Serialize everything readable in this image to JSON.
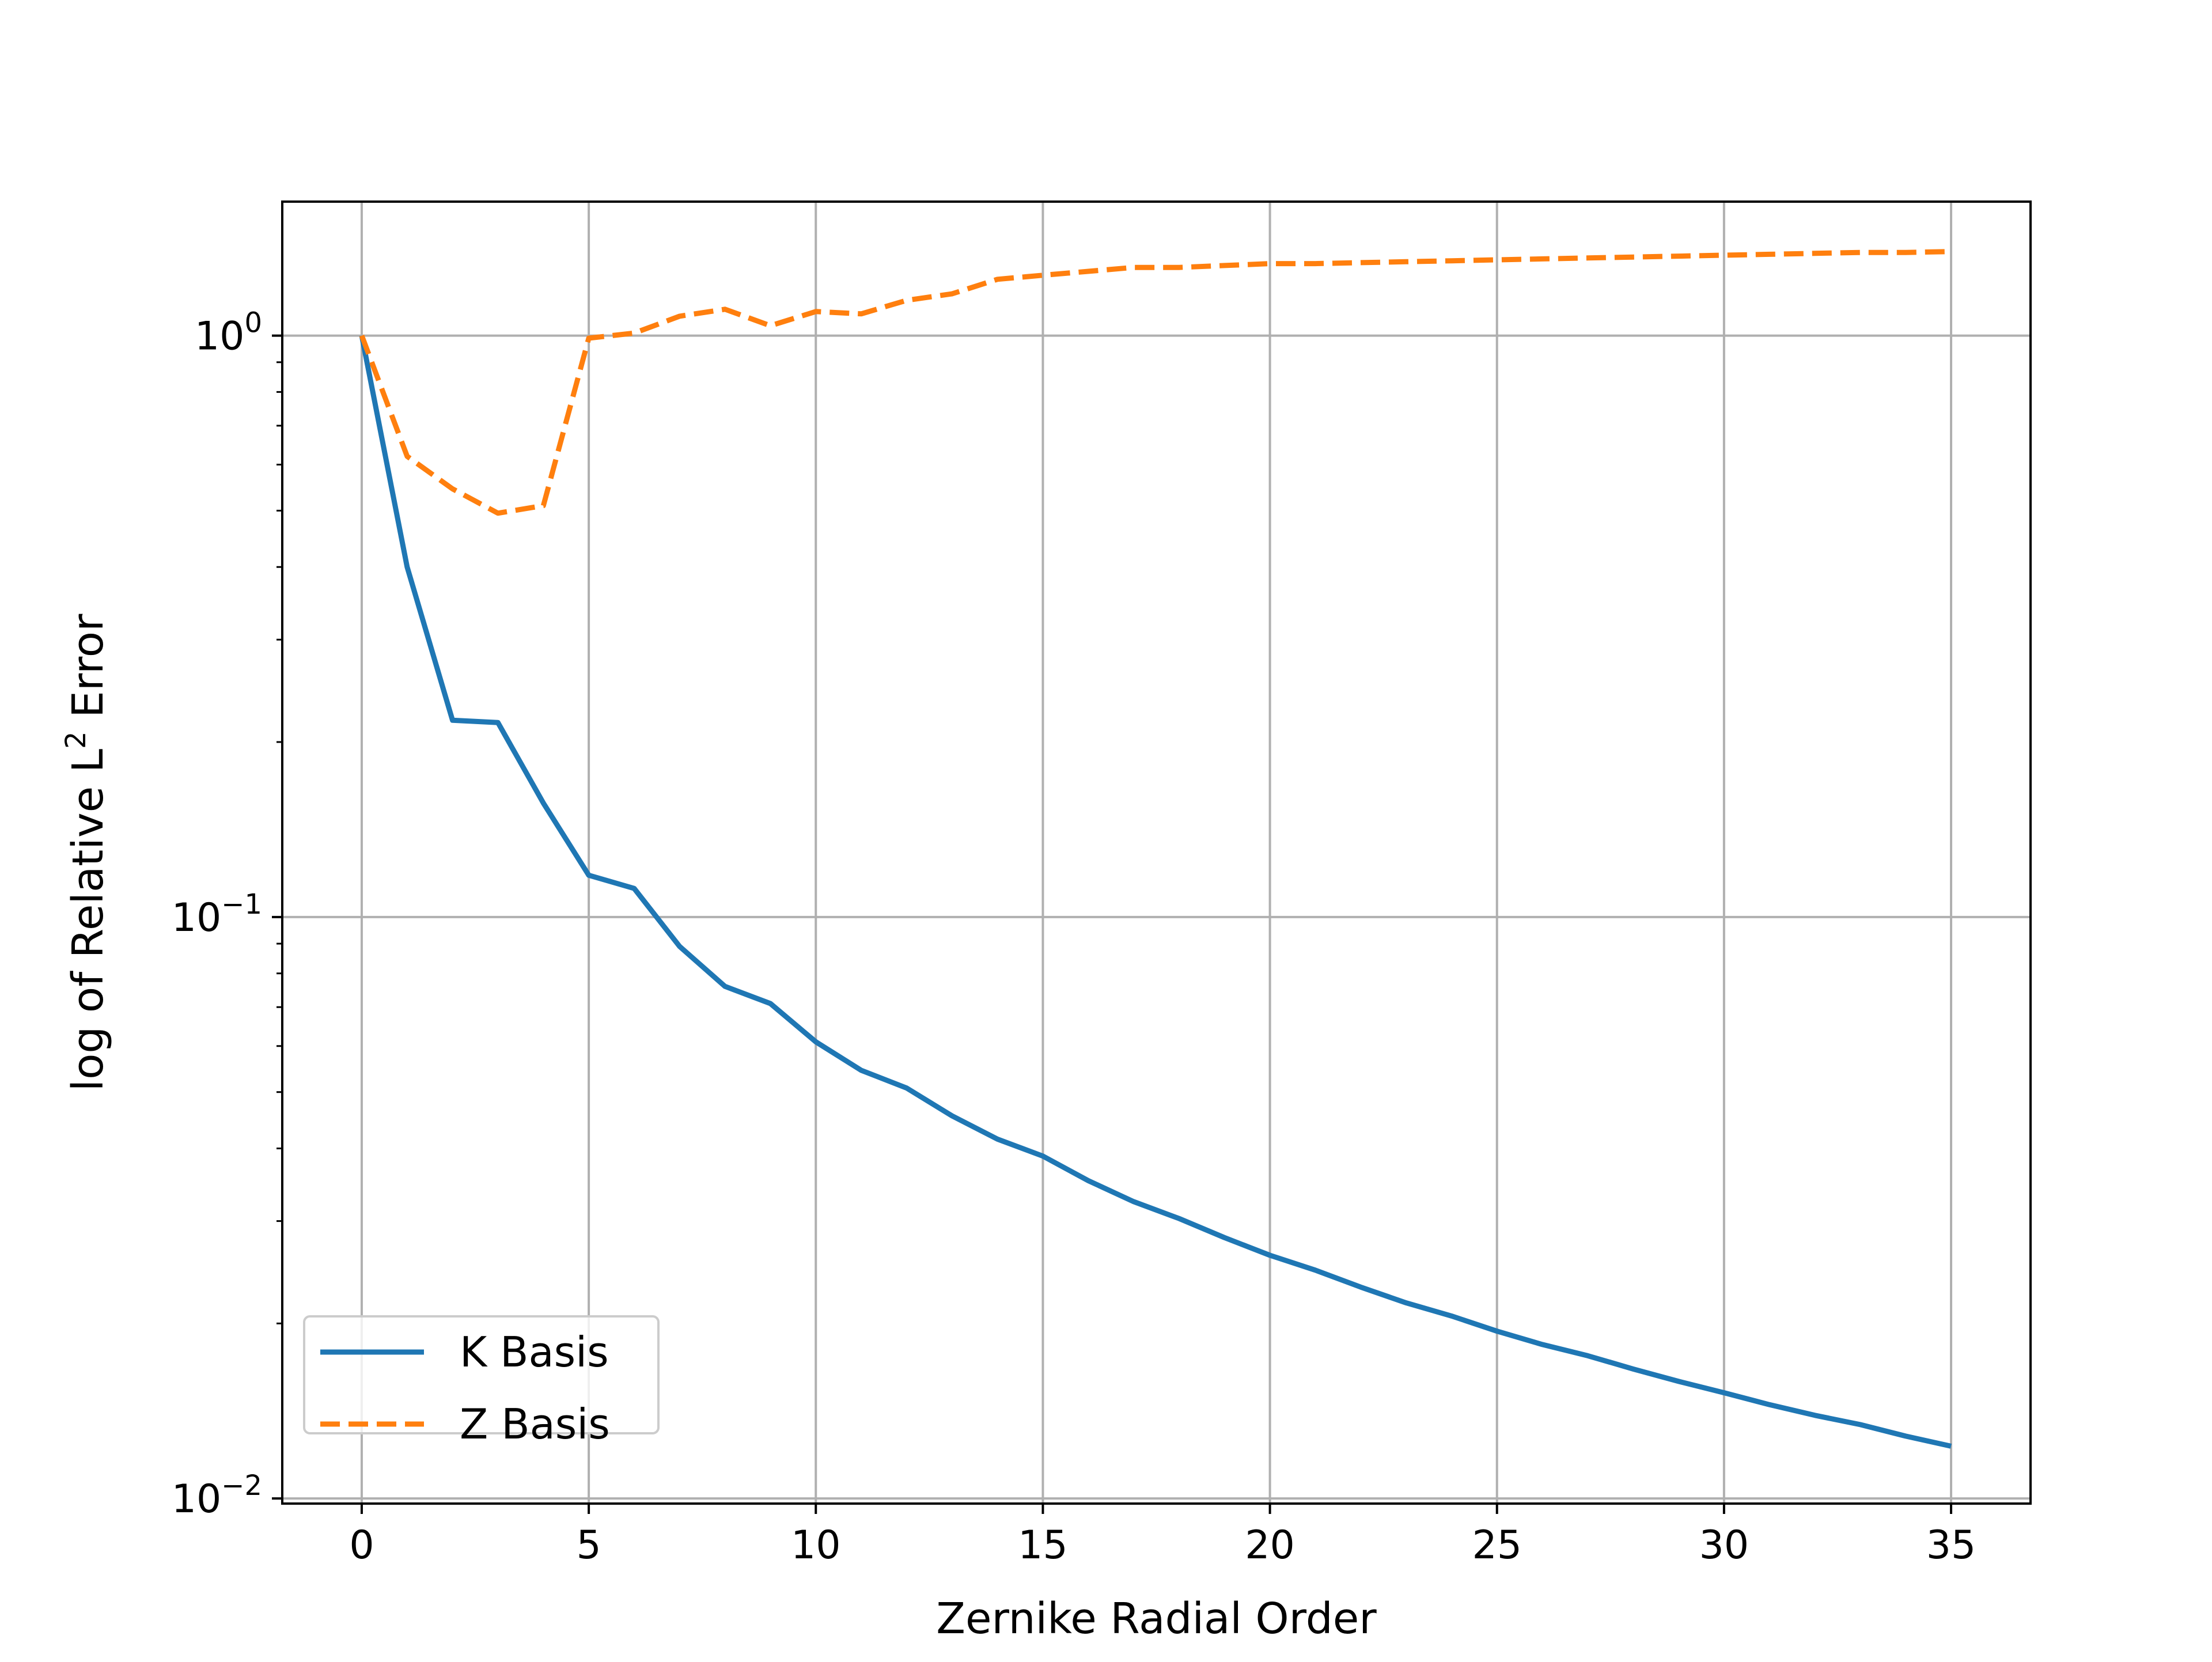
{
  "chart_data": {
    "type": "line",
    "title": "",
    "xlabel": "Zernike Radial Order",
    "ylabel": {
      "prefix": "log of Relative L",
      "superscript": "2",
      "suffix": " Error"
    },
    "x_scale": "linear",
    "y_scale": "log",
    "xlim": [
      -1.75,
      36.75
    ],
    "ylim": [
      0.0098,
      1.7
    ],
    "grid": true,
    "legend_placement": "lower-left",
    "x_ticks": [
      0,
      5,
      10,
      15,
      20,
      25,
      30,
      35
    ],
    "x_tick_labels": [
      "0",
      "5",
      "10",
      "15",
      "20",
      "25",
      "30",
      "35"
    ],
    "y_ticks": [
      {
        "value": 1.0,
        "base": "10",
        "exponent": "0"
      },
      {
        "value": 0.1,
        "base": "10",
        "exponent": "−1"
      },
      {
        "value": 0.01,
        "base": "10",
        "exponent": "−2"
      }
    ],
    "x": [
      0,
      1,
      2,
      3,
      4,
      5,
      6,
      7,
      8,
      9,
      10,
      11,
      12,
      13,
      14,
      15,
      16,
      17,
      18,
      19,
      20,
      21,
      22,
      23,
      24,
      25,
      26,
      27,
      28,
      29,
      30,
      31,
      32,
      33,
      34,
      35
    ],
    "series": [
      {
        "name": "K Basis",
        "color": "#1f77b4",
        "linestyle": "solid",
        "values": [
          1.0,
          0.4,
          0.218,
          0.216,
          0.157,
          0.118,
          0.112,
          0.089,
          0.076,
          0.071,
          0.061,
          0.0545,
          0.0508,
          0.0455,
          0.0415,
          0.0388,
          0.0352,
          0.0324,
          0.0303,
          0.0281,
          0.0262,
          0.0247,
          0.0231,
          0.0217,
          0.0206,
          0.0194,
          0.0184,
          0.0176,
          0.0167,
          0.0159,
          0.0152,
          0.0145,
          0.0139,
          0.0134,
          0.0128,
          0.0123
        ]
      },
      {
        "name": "Z Basis",
        "color": "#ff7f0e",
        "linestyle": "dashed",
        "values": [
          1.0,
          0.62,
          0.545,
          0.495,
          0.51,
          0.99,
          1.01,
          1.08,
          1.11,
          1.04,
          1.1,
          1.09,
          1.15,
          1.18,
          1.25,
          1.27,
          1.29,
          1.31,
          1.31,
          1.32,
          1.33,
          1.33,
          1.335,
          1.34,
          1.345,
          1.35,
          1.355,
          1.36,
          1.365,
          1.37,
          1.375,
          1.38,
          1.385,
          1.39,
          1.39,
          1.395
        ]
      }
    ]
  }
}
